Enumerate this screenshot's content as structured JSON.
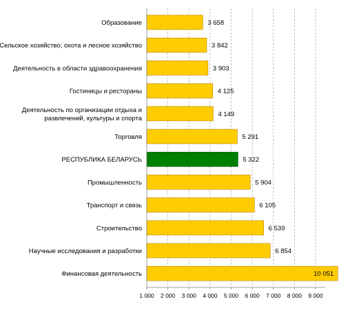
{
  "chart_data": {
    "type": "bar",
    "orientation": "horizontal",
    "categories": [
      [
        "Образование"
      ],
      [
        "Сельское хозяйство, охота и лесное хозяйство"
      ],
      [
        "Деятельность в области здравоохранения"
      ],
      [
        "Гостиницы и рестораны"
      ],
      [
        "Деятельность по организации отдыха и",
        "развлечений, культуры и спорта"
      ],
      [
        "Торговля"
      ],
      [
        "РЕСПУБЛИКА БЕЛАРУСЬ"
      ],
      [
        "Промышленность"
      ],
      [
        "Транспорт и связь"
      ],
      [
        "Строительство"
      ],
      [
        "Научные исследования и разработки"
      ],
      [
        "Финансовая деятельность"
      ]
    ],
    "values": [
      3658,
      3842,
      3903,
      4125,
      4149,
      5291,
      5322,
      5904,
      6105,
      6539,
      6854,
      10051
    ],
    "value_labels": [
      "3 658",
      "3 842",
      "3 903",
      "4 125",
      "4 149",
      "5 291",
      "5 322",
      "5 904",
      "6 105",
      "6 539",
      "6 854",
      "10 051"
    ],
    "highlight_index": 6,
    "colors": {
      "bar": "#FFCC00",
      "bar_stroke": "#B8860B",
      "highlight": "#008000",
      "highlight_stroke": "#004d00",
      "grid": "#9a9a9a",
      "axis": "#808080"
    },
    "xlim": [
      1000,
      9000
    ],
    "xticks": [
      1000,
      2000,
      3000,
      4000,
      5000,
      6000,
      7000,
      8000,
      9000
    ],
    "xtick_labels": [
      "1 000",
      "2 000",
      "3 000",
      "4 000",
      "5 000",
      "6 000",
      "7 000",
      "8 000",
      "9 000"
    ],
    "grid": true,
    "title": "",
    "xlabel": "",
    "ylabel": ""
  }
}
